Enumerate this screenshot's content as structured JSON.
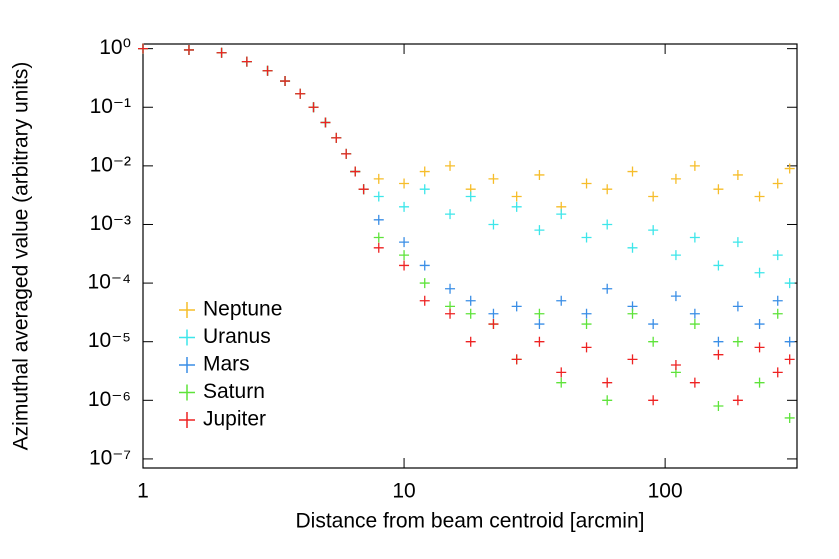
{
  "chart_data": {
    "type": "scatter",
    "x_label": "Distance from beam centroid [arcmin]",
    "y_label": "Azimuthal averaged value (arbitrary units)",
    "xlog": true,
    "ylog": true,
    "xlim": [
      1,
      320
    ],
    "ylim": [
      7e-08,
      1.2
    ],
    "xticks": [
      1,
      10,
      100
    ],
    "yticks": [
      {
        "value": 1,
        "label": "10⁰"
      },
      {
        "value": 0.1,
        "label": "10⁻¹"
      },
      {
        "value": 0.01,
        "label": "10⁻²"
      },
      {
        "value": 0.001,
        "label": "10⁻³"
      },
      {
        "value": 0.0001,
        "label": "10⁻⁴"
      },
      {
        "value": 1e-05,
        "label": "10⁻⁵"
      },
      {
        "value": 1e-06,
        "label": "10⁻⁶"
      },
      {
        "value": 1e-07,
        "label": "10⁻⁷"
      }
    ],
    "legend_position": "left",
    "series": [
      {
        "name": "Neptune",
        "color": "#f6bd2a",
        "x": [
          1,
          1.5,
          2,
          2.5,
          3,
          3.5,
          4,
          4.5,
          5,
          5.5,
          6,
          6.5,
          7,
          8,
          10,
          12,
          15,
          18,
          22,
          27,
          33,
          40,
          50,
          60,
          75,
          90,
          110,
          130,
          160,
          190,
          230,
          270,
          300
        ],
        "values": [
          1,
          0.95,
          0.85,
          0.6,
          0.42,
          0.28,
          0.17,
          0.1,
          0.055,
          0.03,
          0.016,
          0.008,
          0.004,
          0.006,
          0.005,
          0.008,
          0.01,
          0.004,
          0.006,
          0.003,
          0.007,
          0.002,
          0.005,
          0.004,
          0.008,
          0.003,
          0.006,
          0.01,
          0.004,
          0.007,
          0.003,
          0.005,
          0.009
        ]
      },
      {
        "name": "Uranus",
        "color": "#3de6ea",
        "x": [
          1,
          1.5,
          2,
          2.5,
          3,
          3.5,
          4,
          4.5,
          5,
          5.5,
          6,
          6.5,
          7,
          8,
          10,
          12,
          15,
          18,
          22,
          27,
          33,
          40,
          50,
          60,
          75,
          90,
          110,
          130,
          160,
          190,
          230,
          270,
          300
        ],
        "values": [
          1,
          0.95,
          0.85,
          0.6,
          0.42,
          0.28,
          0.17,
          0.1,
          0.055,
          0.03,
          0.016,
          0.008,
          0.004,
          0.003,
          0.002,
          0.004,
          0.0015,
          0.003,
          0.001,
          0.002,
          0.0008,
          0.0015,
          0.0006,
          0.001,
          0.0004,
          0.0008,
          0.0003,
          0.0006,
          0.0002,
          0.0005,
          0.00015,
          0.0003,
          0.0001
        ]
      },
      {
        "name": "Mars",
        "color": "#3a8ee6",
        "x": [
          1,
          1.5,
          2,
          2.5,
          3,
          3.5,
          4,
          4.5,
          5,
          5.5,
          6,
          6.5,
          7,
          8,
          10,
          12,
          15,
          18,
          22,
          27,
          33,
          40,
          50,
          60,
          75,
          90,
          110,
          130,
          160,
          190,
          230,
          270,
          300
        ],
        "values": [
          1,
          0.95,
          0.85,
          0.6,
          0.42,
          0.28,
          0.17,
          0.1,
          0.055,
          0.03,
          0.016,
          0.008,
          0.004,
          0.0012,
          0.0005,
          0.0002,
          8e-05,
          5e-05,
          3e-05,
          4e-05,
          2e-05,
          5e-05,
          3e-05,
          8e-05,
          4e-05,
          2e-05,
          6e-05,
          3e-05,
          1e-05,
          4e-05,
          2e-05,
          5e-05,
          1e-05
        ]
      },
      {
        "name": "Saturn",
        "color": "#5ee33a",
        "x": [
          1,
          1.5,
          2,
          2.5,
          3,
          3.5,
          4,
          4.5,
          5,
          5.5,
          6,
          6.5,
          7,
          8,
          10,
          12,
          15,
          18,
          22,
          27,
          33,
          40,
          50,
          60,
          75,
          90,
          110,
          130,
          160,
          190,
          230,
          270,
          300
        ],
        "values": [
          1,
          0.95,
          0.85,
          0.6,
          0.42,
          0.28,
          0.17,
          0.1,
          0.055,
          0.03,
          0.016,
          0.008,
          0.004,
          0.0006,
          0.0003,
          0.0001,
          4e-05,
          3e-05,
          2e-05,
          5e-06,
          3e-05,
          2e-06,
          2e-05,
          1e-06,
          3e-05,
          1e-05,
          3e-06,
          2e-05,
          8e-07,
          1e-05,
          2e-06,
          3e-05,
          5e-07
        ]
      },
      {
        "name": "Jupiter",
        "color": "#ee2222",
        "x": [
          1,
          1.5,
          2,
          2.5,
          3,
          3.5,
          4,
          4.5,
          5,
          5.5,
          6,
          6.5,
          7,
          8,
          10,
          12,
          15,
          18,
          22,
          27,
          33,
          40,
          50,
          60,
          75,
          90,
          110,
          130,
          160,
          190,
          230,
          270,
          300
        ],
        "values": [
          1,
          0.95,
          0.85,
          0.6,
          0.42,
          0.28,
          0.17,
          0.1,
          0.055,
          0.03,
          0.016,
          0.008,
          0.004,
          0.0004,
          0.0002,
          5e-05,
          3e-05,
          1e-05,
          2e-05,
          5e-06,
          1e-05,
          3e-06,
          8e-06,
          2e-06,
          5e-06,
          1e-06,
          4e-06,
          2e-06,
          6e-06,
          1e-06,
          8e-06,
          3e-06,
          5e-06
        ]
      }
    ]
  }
}
